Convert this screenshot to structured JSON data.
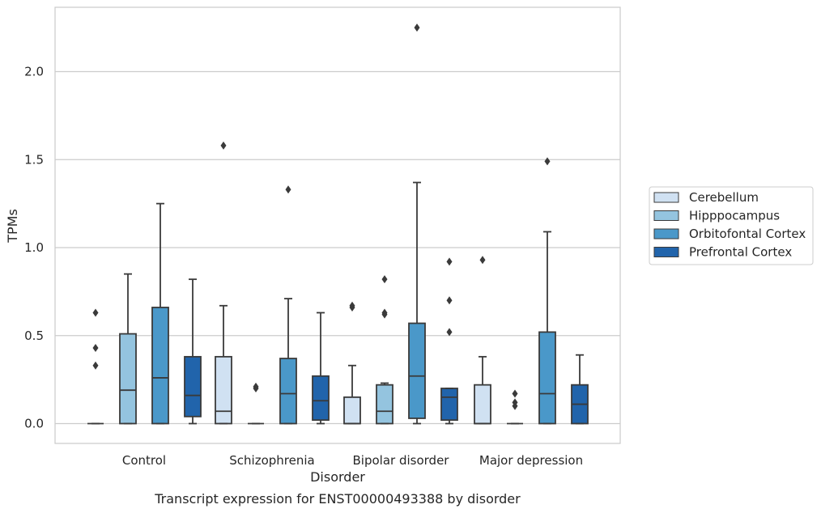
{
  "chart_data": {
    "type": "box",
    "title": "",
    "caption": "Transcript expression for ENST00000493388 by disorder",
    "xlabel": "Disorder",
    "ylabel": "TPMs",
    "ylim": [
      -0.11,
      2.37
    ],
    "yticks": [
      0.0,
      0.5,
      1.0,
      1.5,
      2.0
    ],
    "ytick_labels": [
      "0.0",
      "0.5",
      "1.0",
      "1.5",
      "2.0"
    ],
    "grid": "horizontal",
    "legend_position": "right",
    "categories": [
      "Control",
      "Schizophrenia",
      "Bipolar disorder",
      "Major depression"
    ],
    "series": [
      {
        "name": "Cerebellum",
        "color": "#d0e1f2",
        "boxes": [
          {
            "min": 0,
            "q1": 0,
            "median": 0,
            "q3": 0,
            "max": 0,
            "outliers": [
              0.63,
              0.43,
              0.33
            ]
          },
          {
            "min": 0,
            "q1": 0,
            "median": 0.07,
            "q3": 0.38,
            "max": 0.67,
            "outliers": [
              1.58
            ]
          },
          {
            "min": 0,
            "q1": 0,
            "median": 0,
            "q3": 0.15,
            "max": 0.33,
            "outliers": [
              0.67,
              0.66
            ]
          },
          {
            "min": 0,
            "q1": 0,
            "median": 0,
            "q3": 0.22,
            "max": 0.38,
            "outliers": [
              0.93
            ]
          }
        ]
      },
      {
        "name": "Hipppocampus",
        "color": "#94c4df",
        "boxes": [
          {
            "min": 0,
            "q1": 0,
            "median": 0.19,
            "q3": 0.51,
            "max": 0.85,
            "outliers": []
          },
          {
            "min": 0,
            "q1": 0,
            "median": 0,
            "q3": 0,
            "max": 0,
            "outliers": [
              0.21,
              0.2
            ]
          },
          {
            "min": 0,
            "q1": 0,
            "median": 0.07,
            "q3": 0.22,
            "max": 0.23,
            "outliers": [
              0.82,
              0.63,
              0.62
            ]
          },
          {
            "min": 0,
            "q1": 0,
            "median": 0,
            "q3": 0,
            "max": 0,
            "outliers": [
              0.17,
              0.12,
              0.1
            ]
          }
        ]
      },
      {
        "name": "Orbitofontal Cortex",
        "color": "#4a98c9",
        "boxes": [
          {
            "min": 0,
            "q1": 0,
            "median": 0.26,
            "q3": 0.66,
            "max": 1.25,
            "outliers": []
          },
          {
            "min": 0,
            "q1": 0,
            "median": 0.17,
            "q3": 0.37,
            "max": 0.71,
            "outliers": [
              1.33
            ]
          },
          {
            "min": 0,
            "q1": 0.03,
            "median": 0.27,
            "q3": 0.57,
            "max": 1.37,
            "outliers": [
              2.25
            ]
          },
          {
            "min": 0,
            "q1": 0,
            "median": 0.17,
            "q3": 0.52,
            "max": 1.09,
            "outliers": [
              1.49
            ]
          }
        ]
      },
      {
        "name": "Prefrontal Cortex",
        "color": "#2164ab",
        "boxes": [
          {
            "min": 0,
            "q1": 0.04,
            "median": 0.16,
            "q3": 0.38,
            "max": 0.82,
            "outliers": []
          },
          {
            "min": 0,
            "q1": 0.02,
            "median": 0.13,
            "q3": 0.27,
            "max": 0.63,
            "outliers": []
          },
          {
            "min": 0,
            "q1": 0.02,
            "median": 0.15,
            "q3": 0.2,
            "max": 0.2,
            "outliers": [
              0.92,
              0.7,
              0.52
            ]
          },
          {
            "min": 0,
            "q1": 0,
            "median": 0.11,
            "q3": 0.22,
            "max": 0.39,
            "outliers": []
          }
        ]
      }
    ]
  }
}
